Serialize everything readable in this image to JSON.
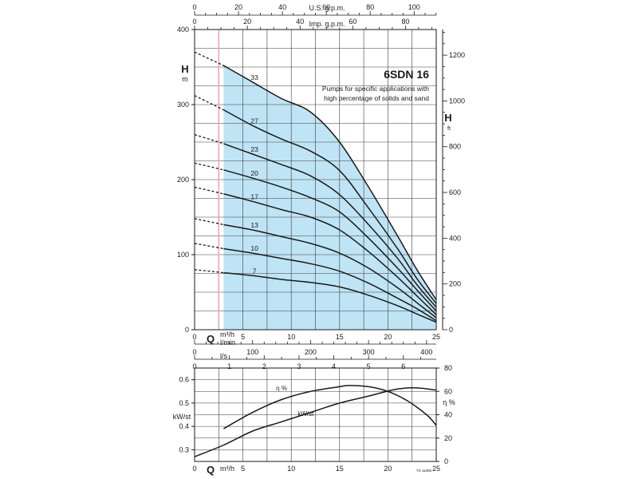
{
  "chart_data": [
    {
      "type": "line",
      "title": "6SDN 16",
      "subtitle": [
        "Pumps for specific applications with",
        "high percentage of solids and sand"
      ],
      "ylabel_left": "H",
      "ylabel_left_unit": "m",
      "ylabel_right": "H",
      "ylabel_right_unit": "ft",
      "x_axis": {
        "label": "Q",
        "unit_lines": [
          "m³/h",
          "l/min"
        ],
        "lim": [
          0,
          25
        ],
        "ticks": [
          "5",
          "10",
          "15",
          "20",
          "25"
        ],
        "lmin_ticks": [
          "100",
          "200",
          "300",
          "400"
        ],
        "ls_label": "l/s",
        "ls_ticks": [
          "1",
          "2",
          "3",
          "4",
          "5",
          "6"
        ],
        "top_usgpm_label": "U.S. g.p.m.",
        "top_usgpm_ticks": [
          "0",
          "20",
          "40",
          "60",
          "80",
          "100"
        ],
        "top_impgpm_label": "Imp. g.p.m.",
        "top_impgpm_ticks": [
          "0",
          "20",
          "40",
          "60",
          "80"
        ]
      },
      "y_left": {
        "lim": [
          0,
          400
        ],
        "ticks": [
          "0",
          "100",
          "200",
          "300",
          "400"
        ]
      },
      "y_right": {
        "lim_ft": [
          0,
          1312
        ],
        "ticks": [
          "0",
          "200",
          "400",
          "600",
          "800",
          "1000",
          "1200"
        ]
      },
      "shaded_range_x": [
        3,
        25
      ],
      "shade_color": "#bfe4f5",
      "grid": true,
      "series": [
        {
          "name": "33",
          "values": [
            [
              0,
              370
            ],
            [
              3,
              352
            ],
            [
              6,
              330
            ],
            [
              9,
              308
            ],
            [
              12,
              290
            ],
            [
              15,
              250
            ],
            [
              18,
              190
            ],
            [
              21,
              125
            ],
            [
              23,
              80
            ],
            [
              25,
              40
            ]
          ]
        },
        {
          "name": "27",
          "values": [
            [
              0,
              312
            ],
            [
              3,
              293
            ],
            [
              6,
              272
            ],
            [
              9,
              254
            ],
            [
              12,
              238
            ],
            [
              15,
              212
            ],
            [
              18,
              162
            ],
            [
              21,
              108
            ],
            [
              23,
              68
            ],
            [
              25,
              35
            ]
          ]
        },
        {
          "name": "23",
          "values": [
            [
              0,
              260
            ],
            [
              3,
              248
            ],
            [
              6,
              234
            ],
            [
              9,
              220
            ],
            [
              12,
              205
            ],
            [
              15,
              180
            ],
            [
              18,
              140
            ],
            [
              21,
              95
            ],
            [
              23,
              60
            ],
            [
              25,
              30
            ]
          ]
        },
        {
          "name": "20",
          "values": [
            [
              0,
              222
            ],
            [
              3,
              213
            ],
            [
              6,
              202
            ],
            [
              9,
              190
            ],
            [
              12,
              176
            ],
            [
              15,
              157
            ],
            [
              18,
              122
            ],
            [
              21,
              82
            ],
            [
              23,
              53
            ],
            [
              25,
              25
            ]
          ]
        },
        {
          "name": "17",
          "values": [
            [
              0,
              190
            ],
            [
              3,
              181
            ],
            [
              6,
              171
            ],
            [
              9,
              160
            ],
            [
              12,
              150
            ],
            [
              15,
              133
            ],
            [
              18,
              104
            ],
            [
              21,
              70
            ],
            [
              23,
              45
            ],
            [
              25,
              20
            ]
          ]
        },
        {
          "name": "13",
          "values": [
            [
              0,
              148
            ],
            [
              3,
              140
            ],
            [
              6,
              133
            ],
            [
              9,
              124
            ],
            [
              12,
              115
            ],
            [
              15,
              102
            ],
            [
              18,
              82
            ],
            [
              21,
              56
            ],
            [
              23,
              36
            ],
            [
              25,
              16
            ]
          ]
        },
        {
          "name": "10",
          "values": [
            [
              0,
              115
            ],
            [
              3,
              108
            ],
            [
              6,
              102
            ],
            [
              9,
              95
            ],
            [
              12,
              88
            ],
            [
              15,
              78
            ],
            [
              18,
              62
            ],
            [
              21,
              42
            ],
            [
              23,
              28
            ],
            [
              25,
              12
            ]
          ]
        },
        {
          "name": "7",
          "values": [
            [
              0,
              80
            ],
            [
              3,
              76
            ],
            [
              6,
              72
            ],
            [
              9,
              67
            ],
            [
              12,
              63
            ],
            [
              15,
              57
            ],
            [
              18,
              46
            ],
            [
              21,
              32
            ],
            [
              23,
              21
            ],
            [
              25,
              10
            ]
          ]
        }
      ]
    },
    {
      "type": "line",
      "x_axis": {
        "label": "Q",
        "unit": "m³/h",
        "lim": [
          0,
          25
        ],
        "ticks": [
          "5",
          "10",
          "15",
          "20",
          "25"
        ]
      },
      "y_left": {
        "label": "kW/st",
        "lim": [
          0.25,
          0.65
        ],
        "ticks": [
          "0.3",
          "0.4",
          "0.5",
          "0.6"
        ]
      },
      "y_right": {
        "label": "η %",
        "lim": [
          0,
          80
        ],
        "ticks": [
          "0",
          "20",
          "40",
          "60",
          "80"
        ]
      },
      "grid": true,
      "footnote": "TS 11080",
      "series": [
        {
          "name": "η %",
          "axis": "right",
          "values": [
            [
              3,
              28
            ],
            [
              6,
              42
            ],
            [
              9,
              53
            ],
            [
              12,
              60
            ],
            [
              15,
              64
            ],
            [
              16,
              65
            ],
            [
              18,
              64
            ],
            [
              20,
              60
            ],
            [
              22,
              52
            ],
            [
              24,
              40
            ],
            [
              25,
              31
            ]
          ]
        },
        {
          "name": "kW/st",
          "axis": "left",
          "values": [
            [
              0,
              0.27
            ],
            [
              3,
              0.32
            ],
            [
              6,
              0.38
            ],
            [
              9,
              0.42
            ],
            [
              12,
              0.46
            ],
            [
              15,
              0.5
            ],
            [
              18,
              0.53
            ],
            [
              21,
              0.56
            ],
            [
              23,
              0.565
            ],
            [
              25,
              0.555
            ]
          ]
        }
      ]
    }
  ]
}
